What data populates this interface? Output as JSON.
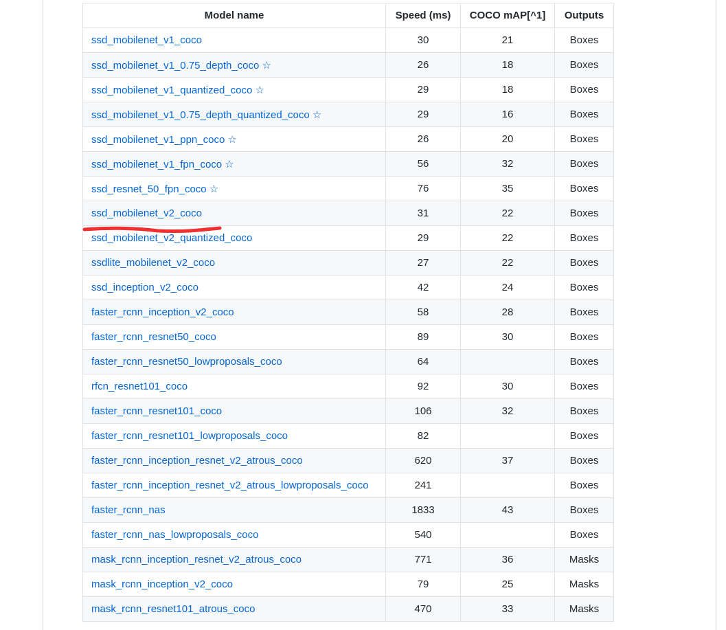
{
  "table": {
    "headers": [
      "Model name",
      "Speed (ms)",
      "COCO mAP[^1]",
      "Outputs"
    ],
    "rows": [
      [
        "ssd_mobilenet_v1_coco",
        "30",
        "21",
        "Boxes"
      ],
      [
        "ssd_mobilenet_v1_0.75_depth_coco ☆",
        "26",
        "18",
        "Boxes"
      ],
      [
        "ssd_mobilenet_v1_quantized_coco ☆",
        "29",
        "18",
        "Boxes"
      ],
      [
        "ssd_mobilenet_v1_0.75_depth_quantized_coco ☆",
        "29",
        "16",
        "Boxes"
      ],
      [
        "ssd_mobilenet_v1_ppn_coco ☆",
        "26",
        "20",
        "Boxes"
      ],
      [
        "ssd_mobilenet_v1_fpn_coco ☆",
        "56",
        "32",
        "Boxes"
      ],
      [
        "ssd_resnet_50_fpn_coco ☆",
        "76",
        "35",
        "Boxes"
      ],
      [
        "ssd_mobilenet_v2_coco",
        "31",
        "22",
        "Boxes"
      ],
      [
        "ssd_mobilenet_v2_quantized_coco",
        "29",
        "22",
        "Boxes"
      ],
      [
        "ssdlite_mobilenet_v2_coco",
        "27",
        "22",
        "Boxes"
      ],
      [
        "ssd_inception_v2_coco",
        "42",
        "24",
        "Boxes"
      ],
      [
        "faster_rcnn_inception_v2_coco",
        "58",
        "28",
        "Boxes"
      ],
      [
        "faster_rcnn_resnet50_coco",
        "89",
        "30",
        "Boxes"
      ],
      [
        "faster_rcnn_resnet50_lowproposals_coco",
        "64",
        "",
        "Boxes"
      ],
      [
        "rfcn_resnet101_coco",
        "92",
        "30",
        "Boxes"
      ],
      [
        "faster_rcnn_resnet101_coco",
        "106",
        "32",
        "Boxes"
      ],
      [
        "faster_rcnn_resnet101_lowproposals_coco",
        "82",
        "",
        "Boxes"
      ],
      [
        "faster_rcnn_inception_resnet_v2_atrous_coco",
        "620",
        "37",
        "Boxes"
      ],
      [
        "faster_rcnn_inception_resnet_v2_atrous_lowproposals_coco",
        "241",
        "",
        "Boxes"
      ],
      [
        "faster_rcnn_nas",
        "1833",
        "43",
        "Boxes"
      ],
      [
        "faster_rcnn_nas_lowproposals_coco",
        "540",
        "",
        "Boxes"
      ],
      [
        "mask_rcnn_inception_resnet_v2_atrous_coco",
        "771",
        "36",
        "Masks"
      ],
      [
        "mask_rcnn_inception_v2_coco",
        "79",
        "25",
        "Masks"
      ],
      [
        "mask_rcnn_resnet101_atrous_coco",
        "470",
        "33",
        "Masks"
      ]
    ]
  },
  "annotation": {
    "highlighted_row": "ssd_mobilenet_v2_coco",
    "color": "#f03030"
  },
  "colors": {
    "link": "#0366d6",
    "alt_row": "#f6f8fa",
    "border": "#dfe2e5"
  }
}
